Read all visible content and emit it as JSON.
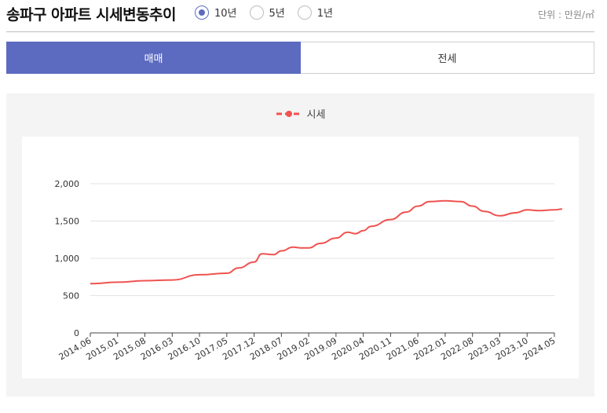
{
  "header": {
    "title": "송파구 아파트 시세변동추이",
    "unit": "단위 : 만원/㎡",
    "period_options": [
      {
        "label": "10년",
        "selected": true
      },
      {
        "label": "5년",
        "selected": false
      },
      {
        "label": "1년",
        "selected": false
      }
    ]
  },
  "tabs": [
    {
      "label": "매매",
      "active": true
    },
    {
      "label": "전세",
      "active": false
    }
  ],
  "colors": {
    "accent": "#5c6bc0",
    "series": "#ef5350"
  },
  "chart_data": {
    "type": "line",
    "legend": [
      "시세"
    ],
    "legend_position": "top-center",
    "grid": true,
    "ylim": [
      0,
      2000
    ],
    "yticks": [
      0,
      500,
      1000,
      1500,
      2000
    ],
    "ytick_labels": [
      "0",
      "500",
      "1,000",
      "1,500",
      "2,000"
    ],
    "xtick_labels": [
      "2014.06",
      "2015.01",
      "2015.08",
      "2016.03",
      "2016.10",
      "2017.05",
      "2017.12",
      "2018.07",
      "2019.02",
      "2019.09",
      "2020.04",
      "2020.11",
      "2021.06",
      "2022.01",
      "2022.08",
      "2023.03",
      "2023.10",
      "2024.05"
    ],
    "series": [
      {
        "name": "시세",
        "x": [
          "2014.06",
          "2015.01",
          "2015.08",
          "2016.03",
          "2016.10",
          "2017.05",
          "2017.08",
          "2017.12",
          "2018.02",
          "2018.05",
          "2018.07",
          "2018.10",
          "2018.12",
          "2019.02",
          "2019.05",
          "2019.09",
          "2019.12",
          "2020.02",
          "2020.04",
          "2020.06",
          "2020.11",
          "2021.03",
          "2021.06",
          "2021.09",
          "2022.01",
          "2022.05",
          "2022.08",
          "2022.11",
          "2023.03",
          "2023.07",
          "2023.10",
          "2024.01",
          "2024.05",
          "2024.07"
        ],
        "values": [
          660,
          680,
          700,
          710,
          780,
          800,
          870,
          950,
          1060,
          1050,
          1100,
          1150,
          1140,
          1140,
          1200,
          1270,
          1350,
          1330,
          1370,
          1430,
          1520,
          1620,
          1700,
          1760,
          1770,
          1760,
          1700,
          1630,
          1570,
          1610,
          1650,
          1640,
          1650,
          1660
        ]
      }
    ]
  }
}
